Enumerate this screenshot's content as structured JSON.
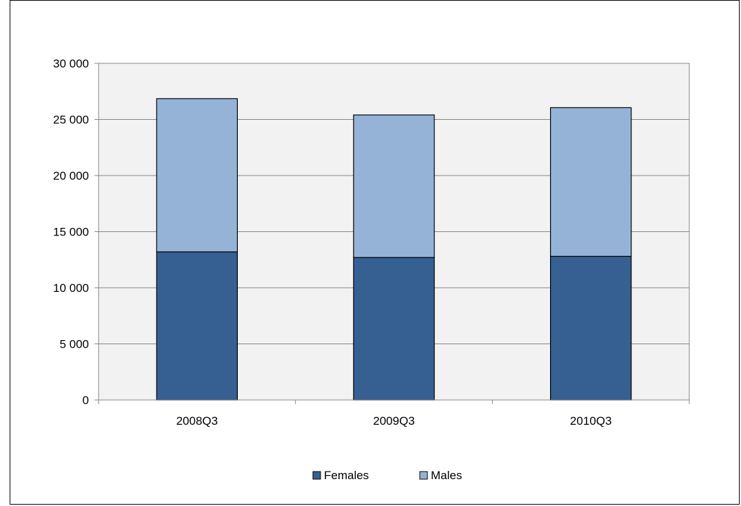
{
  "chart_data": {
    "type": "bar",
    "stacked": true,
    "categories": [
      "2008Q3",
      "2009Q3",
      "2010Q3"
    ],
    "series": [
      {
        "name": "Females",
        "values": [
          13200,
          12700,
          12800
        ],
        "color": "#366092"
      },
      {
        "name": "Males",
        "values": [
          13650,
          12700,
          13250
        ],
        "color": "#95b3d7"
      }
    ],
    "yticks": [
      "0",
      "5 000",
      "10 000",
      "15 000",
      "20 000",
      "25 000",
      "30 000"
    ],
    "ylim": [
      0,
      30000
    ],
    "grid": true,
    "plot_background": "#f2f2f2",
    "legend_position": "bottom"
  }
}
